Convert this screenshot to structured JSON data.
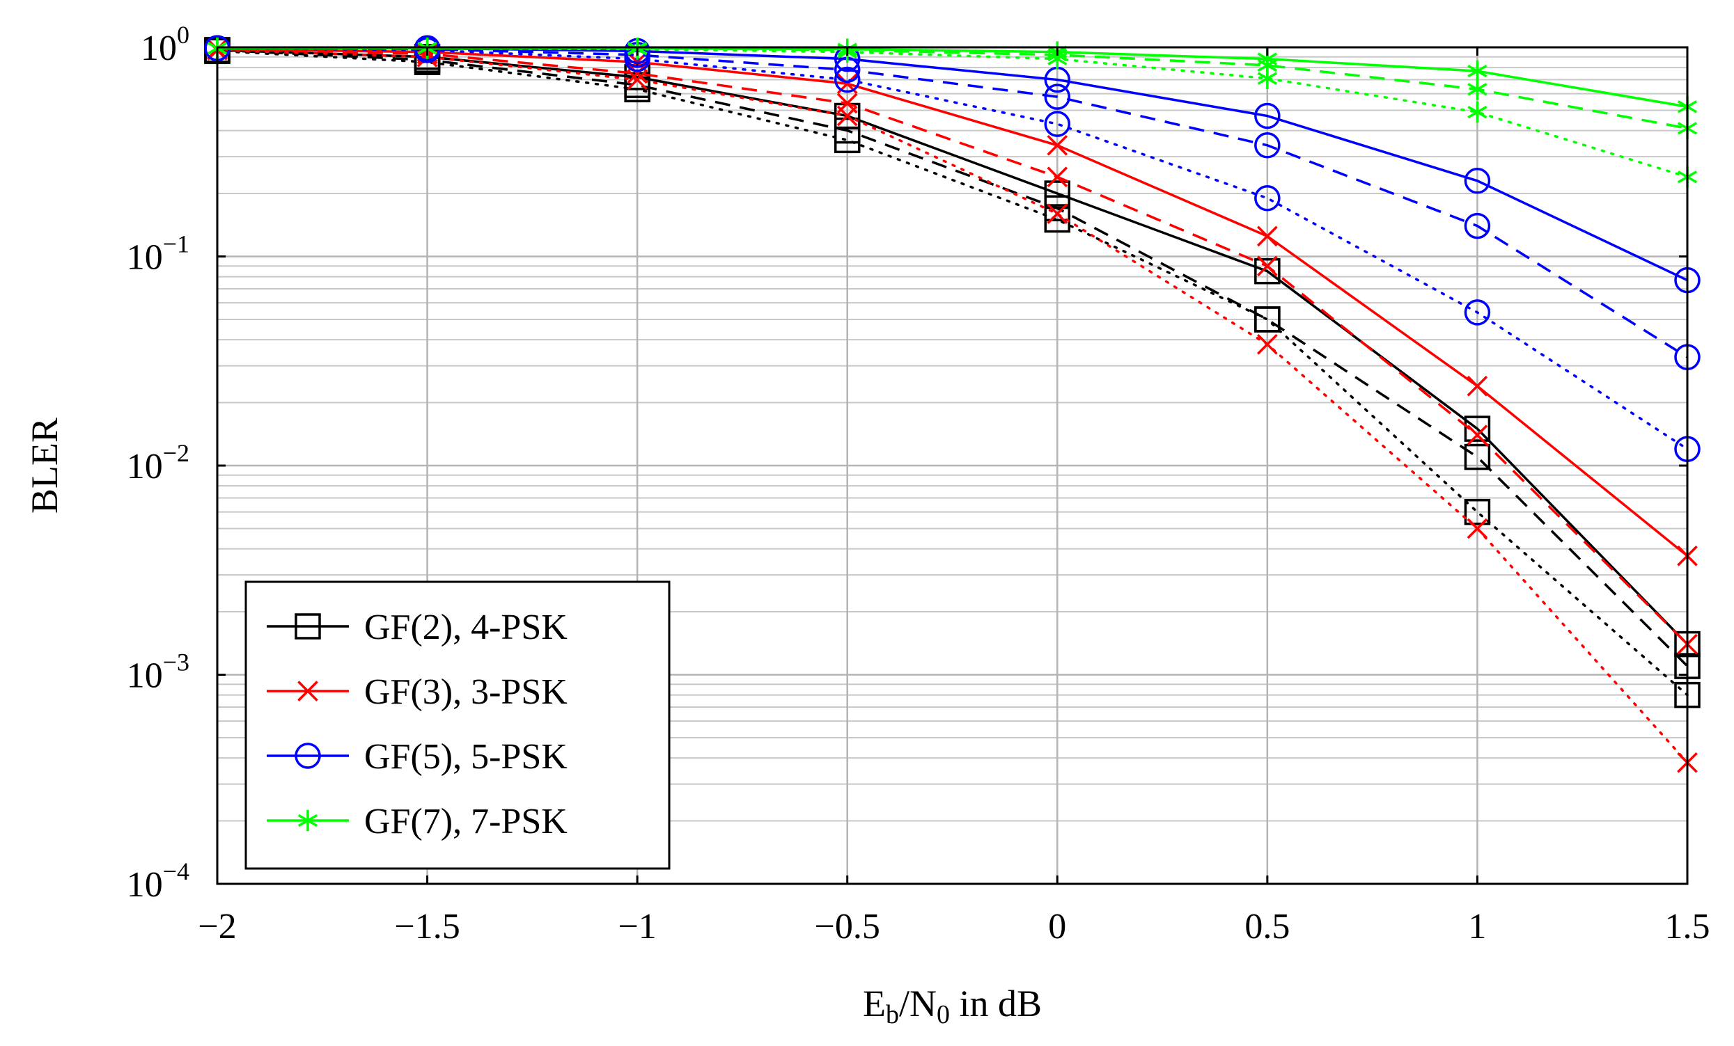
{
  "chart_data": {
    "type": "line",
    "title": "",
    "xlabel": {
      "base": "E",
      "base_sub": "b",
      "slash": "/N",
      "slash_sub": "0",
      "rest": " in dB"
    },
    "ylabel": "BLER",
    "y_scale": "log",
    "xlim": [
      -2,
      1.5
    ],
    "ylim": [
      0.0001,
      1
    ],
    "x_ticks": [
      {
        "value": -2,
        "label": "−2"
      },
      {
        "value": -1.5,
        "label": "−1.5"
      },
      {
        "value": -1,
        "label": "−1"
      },
      {
        "value": -0.5,
        "label": "−0.5"
      },
      {
        "value": 0,
        "label": "0"
      },
      {
        "value": 0.5,
        "label": "0.5"
      },
      {
        "value": 1,
        "label": "1"
      },
      {
        "value": 1.5,
        "label": "1.5"
      }
    ],
    "y_ticks": [
      {
        "value": 1,
        "base": "10",
        "exp": "0"
      },
      {
        "value": 0.1,
        "base": "10",
        "exp": "−1"
      },
      {
        "value": 0.01,
        "base": "10",
        "exp": "−2"
      },
      {
        "value": 0.001,
        "base": "10",
        "exp": "−3"
      },
      {
        "value": 0.0001,
        "base": "10",
        "exp": "−4"
      }
    ],
    "grid": true,
    "legend_position": "bottom-left",
    "x": [
      -2,
      -1.5,
      -1,
      -0.5,
      0,
      0.5,
      1,
      1.5
    ],
    "legend": [
      {
        "label": "GF(2), 4-PSK",
        "color": "#000000",
        "marker": "square"
      },
      {
        "label": "GF(3), 3-PSK",
        "color": "#ff0000",
        "marker": "x"
      },
      {
        "label": "GF(5), 5-PSK",
        "color": "#0000ff",
        "marker": "circle"
      },
      {
        "label": "GF(7), 7-PSK",
        "color": "#00ff00",
        "marker": "star"
      }
    ],
    "series": [
      {
        "name": "GF(2), 4-PSK solid",
        "color": "#000000",
        "marker": "square",
        "dash": "solid",
        "values": [
          0.97,
          0.9,
          0.72,
          0.47,
          0.2,
          0.085,
          0.015,
          0.0014
        ]
      },
      {
        "name": "GF(2), 4-PSK dashed",
        "color": "#000000",
        "marker": "square",
        "dash": "dashed",
        "values": [
          0.97,
          0.87,
          0.66,
          0.4,
          0.17,
          0.05,
          0.011,
          0.0011
        ]
      },
      {
        "name": "GF(2), 4-PSK dotted",
        "color": "#000000",
        "marker": "square",
        "dash": "dotted",
        "values": [
          0.96,
          0.85,
          0.63,
          0.36,
          0.15,
          0.05,
          0.006,
          0.0008
        ]
      },
      {
        "name": "GF(3), 3-PSK solid",
        "color": "#ff0000",
        "marker": "x",
        "dash": "solid",
        "values": [
          0.98,
          0.95,
          0.85,
          0.67,
          0.34,
          0.125,
          0.024,
          0.0037
        ]
      },
      {
        "name": "GF(3), 3-PSK dashed",
        "color": "#ff0000",
        "marker": "x",
        "dash": "dashed",
        "values": [
          0.98,
          0.93,
          0.75,
          0.54,
          0.24,
          0.09,
          0.014,
          0.0014
        ]
      },
      {
        "name": "GF(3), 3-PSK dotted",
        "color": "#ff0000",
        "marker": "x",
        "dash": "dotted",
        "values": [
          0.97,
          0.9,
          0.7,
          0.47,
          0.16,
          0.038,
          0.005,
          0.00038
        ]
      },
      {
        "name": "GF(5), 5-PSK solid",
        "color": "#0000ff",
        "marker": "circle",
        "dash": "solid",
        "values": [
          0.99,
          0.99,
          0.96,
          0.88,
          0.7,
          0.47,
          0.23,
          0.077
        ]
      },
      {
        "name": "GF(5), 5-PSK dashed",
        "color": "#0000ff",
        "marker": "circle",
        "dash": "dashed",
        "values": [
          0.99,
          0.98,
          0.92,
          0.78,
          0.58,
          0.34,
          0.14,
          0.033
        ]
      },
      {
        "name": "GF(5), 5-PSK dotted",
        "color": "#0000ff",
        "marker": "circle",
        "dash": "dotted",
        "values": [
          0.99,
          0.97,
          0.88,
          0.7,
          0.43,
          0.19,
          0.054,
          0.012
        ]
      },
      {
        "name": "GF(7), 7-PSK solid",
        "color": "#00ff00",
        "marker": "star",
        "dash": "solid",
        "values": [
          0.99,
          0.99,
          0.99,
          0.98,
          0.95,
          0.88,
          0.77,
          0.52
        ]
      },
      {
        "name": "GF(7), 7-PSK dashed",
        "color": "#00ff00",
        "marker": "star",
        "dash": "dashed",
        "values": [
          0.99,
          0.99,
          0.99,
          0.97,
          0.92,
          0.82,
          0.63,
          0.41
        ]
      },
      {
        "name": "GF(7), 7-PSK dotted",
        "color": "#00ff00",
        "marker": "star",
        "dash": "dotted",
        "values": [
          0.99,
          0.99,
          0.98,
          0.95,
          0.88,
          0.71,
          0.49,
          0.24
        ]
      }
    ]
  }
}
